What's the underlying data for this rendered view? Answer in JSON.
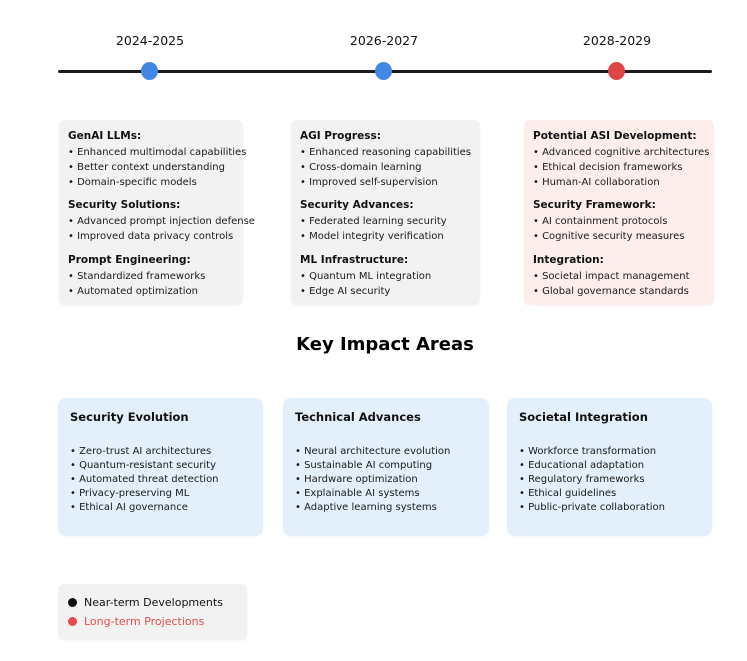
{
  "timeline": {
    "line_color": "#1c1c1c",
    "near_term_color": "#4287e3",
    "long_term_color": "#e04545",
    "periods": [
      {
        "label": "2024-2025",
        "dot_color": "#4287e3"
      },
      {
        "label": "2026-2027",
        "dot_color": "#4287e3"
      },
      {
        "label": "2028-2029",
        "dot_color": "#e04545"
      }
    ]
  },
  "period_boxes": [
    {
      "theme": "gray",
      "sections": [
        {
          "heading": "GenAI LLMs:",
          "items": [
            "Enhanced multimodal capabilities",
            "Better context understanding",
            "Domain-specific models"
          ]
        },
        {
          "heading": "Security Solutions:",
          "items": [
            "Advanced prompt injection defense",
            "Improved data privacy controls"
          ]
        },
        {
          "heading": "Prompt Engineering:",
          "items": [
            "Standardized frameworks",
            "Automated optimization"
          ]
        }
      ]
    },
    {
      "theme": "gray",
      "sections": [
        {
          "heading": "AGI Progress:",
          "items": [
            "Enhanced reasoning capabilities",
            "Cross-domain learning",
            "Improved self-supervision"
          ]
        },
        {
          "heading": "Security Advances:",
          "items": [
            "Federated learning security",
            "Model integrity verification"
          ]
        },
        {
          "heading": "ML Infrastructure:",
          "items": [
            "Quantum ML integration",
            "Edge AI security"
          ]
        }
      ]
    },
    {
      "theme": "pink",
      "sections": [
        {
          "heading": "Potential ASI Development:",
          "items": [
            "Advanced cognitive architectures",
            "Ethical decision frameworks",
            "Human-AI collaboration"
          ]
        },
        {
          "heading": "Security Framework:",
          "items": [
            "AI containment protocols",
            "Cognitive security measures"
          ]
        },
        {
          "heading": "Integration:",
          "items": [
            "Societal impact management",
            "Global governance standards"
          ]
        }
      ]
    }
  ],
  "impact": {
    "title": "Key Impact Areas",
    "box_color": "#e3f0fb",
    "boxes": [
      {
        "title": "Security Evolution",
        "items": [
          "Zero-trust AI architectures",
          "Quantum-resistant security",
          "Automated threat detection",
          "Privacy-preserving ML",
          "Ethical AI governance"
        ]
      },
      {
        "title": "Technical Advances",
        "items": [
          "Neural architecture evolution",
          "Sustainable AI computing",
          "Hardware optimization",
          "Explainable AI systems",
          "Adaptive learning systems"
        ]
      },
      {
        "title": "Societal Integration",
        "items": [
          "Workforce transformation",
          "Educational adaptation",
          "Regulatory frameworks",
          "Ethical guidelines",
          "Public-private collaboration"
        ]
      }
    ]
  },
  "legend": {
    "items": [
      {
        "label": "Near-term Developments",
        "color": "#111111"
      },
      {
        "label": "Long-term Projections",
        "color": "#e74c4c"
      }
    ]
  }
}
